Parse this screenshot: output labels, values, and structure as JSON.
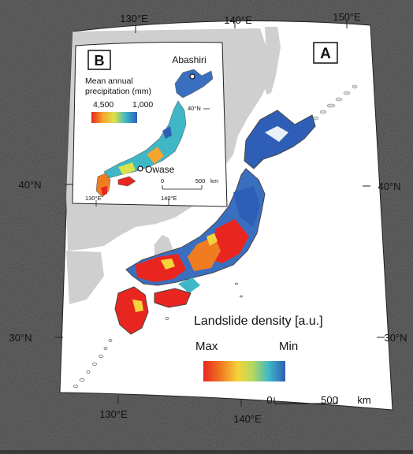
{
  "main_map": {
    "panel_label": "A",
    "lon_top_labels": [
      "130°E",
      "140°E",
      "150°E"
    ],
    "lon_bottom_labels": [
      "130°E",
      "140°E"
    ],
    "lat_left_labels": [
      "40°N",
      "30°N"
    ],
    "lat_right_labels": [
      "40°N",
      "30°N"
    ],
    "legend": {
      "title": "Landslide density [a.u.]",
      "min_label": "Min",
      "max_label": "Max",
      "colors": [
        "#e8261f",
        "#f07c22",
        "#f6d33a",
        "#b5d95c",
        "#3fb7c6",
        "#2f5eb7"
      ]
    },
    "scale_bar": {
      "zero": "0",
      "value": "500",
      "unit": "km"
    }
  },
  "inset": {
    "panel_label": "B",
    "legend_title_line1": "Mean annual",
    "legend_title_line2": "precipitation (mm)",
    "legend_max": "4,500",
    "legend_min": "1,000",
    "places": [
      "Abashiri",
      "Owase"
    ],
    "lat_label": "40°N",
    "lon_labels": [
      "130°E",
      "140°E"
    ],
    "scale_bar": {
      "zero": "0",
      "value": "500",
      "unit": "km"
    }
  }
}
